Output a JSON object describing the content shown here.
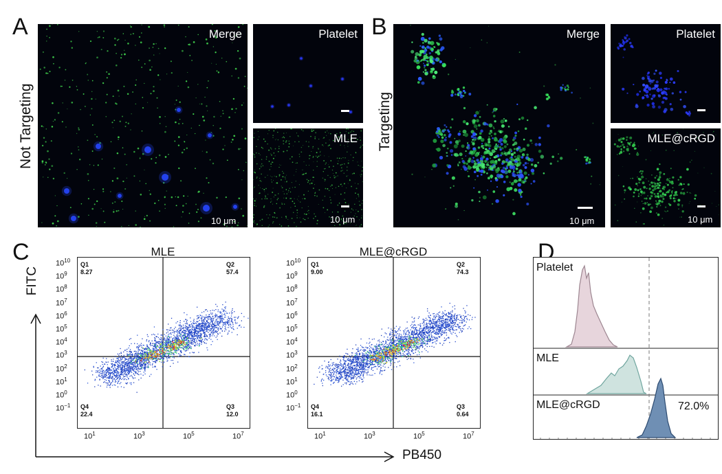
{
  "panels": {
    "a": {
      "letter": "A",
      "row_label": "Not Targeting",
      "merge_label": "Merge",
      "platelet_label": "Platelet",
      "mle_label": "MLE",
      "scale_text": "10 μm"
    },
    "b": {
      "letter": "B",
      "row_label": "Targeting",
      "merge_label": "Merge",
      "platelet_label": "Platelet",
      "mle_label": "MLE@cRGD",
      "scale_text": "10 μm"
    },
    "c": {
      "letter": "C",
      "y_axis_label": "FITC",
      "x_axis_label": "PB450",
      "plots": [
        {
          "title": "MLE",
          "q1_name": "Q1",
          "q1": "8.27",
          "q2_name": "Q2",
          "q2": "57.4",
          "q3_name": "Q3",
          "q3": "12.0",
          "q4_name": "Q4",
          "q4": "22.4"
        },
        {
          "title": "MLE@cRGD",
          "q1_name": "Q1",
          "q1": "9.00",
          "q2_name": "Q2",
          "q2": "74.3",
          "q3_name": "Q3",
          "q3": "0.64",
          "q4_name": "Q4",
          "q4": "16.1"
        }
      ],
      "x_ticks": [
        {
          "base": "10",
          "exp": "1"
        },
        {
          "base": "10",
          "exp": "3"
        },
        {
          "base": "10",
          "exp": "5"
        },
        {
          "base": "10",
          "exp": "7"
        }
      ],
      "y_ticks": [
        {
          "base": "10",
          "exp": "10"
        },
        {
          "base": "10",
          "exp": "9"
        },
        {
          "base": "10",
          "exp": "8"
        },
        {
          "base": "10",
          "exp": "7"
        },
        {
          "base": "10",
          "exp": "6"
        },
        {
          "base": "10",
          "exp": "5"
        },
        {
          "base": "10",
          "exp": "4"
        },
        {
          "base": "10",
          "exp": "3"
        },
        {
          "base": "10",
          "exp": "2"
        },
        {
          "base": "10",
          "exp": "1"
        },
        {
          "base": "10",
          "exp": "0"
        },
        {
          "base": "10",
          "exp": "−1"
        }
      ]
    },
    "d": {
      "letter": "D",
      "histograms": [
        {
          "label": "Platelet",
          "fill": "#e7d5dc",
          "stroke": "#9c8590"
        },
        {
          "label": "MLE",
          "fill": "#cfe3df",
          "stroke": "#6fa59e"
        },
        {
          "label": "MLE@cRGD",
          "fill": "#6f8fb4",
          "stroke": "#2c4a70",
          "percent": "72.0%"
        }
      ]
    }
  }
}
